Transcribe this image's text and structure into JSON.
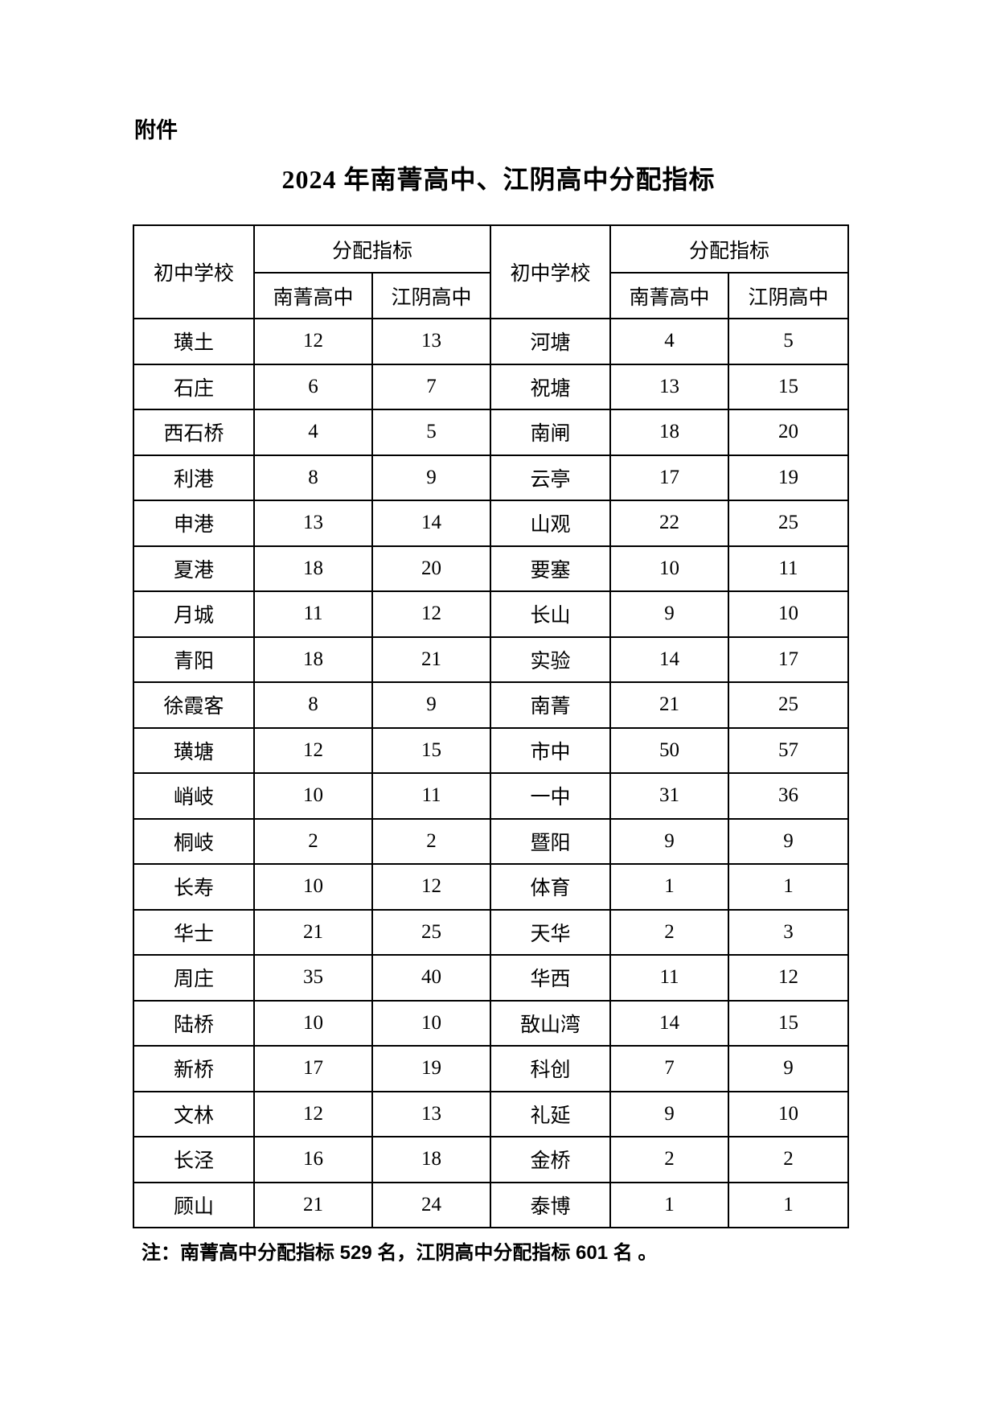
{
  "page": {
    "attachment_label": "附件",
    "title": "2024 年南菁高中、江阴高中分配指标",
    "footnote": "注：南菁高中分配指标 529 名，江阴高中分配指标 601 名 。"
  },
  "table": {
    "headers": {
      "school": "初中学校",
      "quota_group": "分配指标",
      "nanjing": "南菁高中",
      "jiangyin": "江阴高中"
    },
    "totals": {
      "nanjing_total": "529",
      "jiangyin_total": "601"
    },
    "rows": [
      {
        "left": {
          "school": "璜土",
          "nanjing": "12",
          "jiangyin": "13"
        },
        "right": {
          "school": "河塘",
          "nanjing": "4",
          "jiangyin": "5"
        }
      },
      {
        "left": {
          "school": "石庄",
          "nanjing": "6",
          "jiangyin": "7"
        },
        "right": {
          "school": "祝塘",
          "nanjing": "13",
          "jiangyin": "15"
        }
      },
      {
        "left": {
          "school": "西石桥",
          "nanjing": "4",
          "jiangyin": "5"
        },
        "right": {
          "school": "南闸",
          "nanjing": "18",
          "jiangyin": "20"
        }
      },
      {
        "left": {
          "school": "利港",
          "nanjing": "8",
          "jiangyin": "9"
        },
        "right": {
          "school": "云亭",
          "nanjing": "17",
          "jiangyin": "19"
        }
      },
      {
        "left": {
          "school": "申港",
          "nanjing": "13",
          "jiangyin": "14"
        },
        "right": {
          "school": "山观",
          "nanjing": "22",
          "jiangyin": "25"
        }
      },
      {
        "left": {
          "school": "夏港",
          "nanjing": "18",
          "jiangyin": "20"
        },
        "right": {
          "school": "要塞",
          "nanjing": "10",
          "jiangyin": "11"
        }
      },
      {
        "left": {
          "school": "月城",
          "nanjing": "11",
          "jiangyin": "12"
        },
        "right": {
          "school": "长山",
          "nanjing": "9",
          "jiangyin": "10"
        }
      },
      {
        "left": {
          "school": "青阳",
          "nanjing": "18",
          "jiangyin": "21"
        },
        "right": {
          "school": "实验",
          "nanjing": "14",
          "jiangyin": "17"
        }
      },
      {
        "left": {
          "school": "徐霞客",
          "nanjing": "8",
          "jiangyin": "9"
        },
        "right": {
          "school": "南菁",
          "nanjing": "21",
          "jiangyin": "25"
        }
      },
      {
        "left": {
          "school": "璜塘",
          "nanjing": "12",
          "jiangyin": "15"
        },
        "right": {
          "school": "市中",
          "nanjing": "50",
          "jiangyin": "57"
        }
      },
      {
        "left": {
          "school": "峭岐",
          "nanjing": "10",
          "jiangyin": "11"
        },
        "right": {
          "school": "一中",
          "nanjing": "31",
          "jiangyin": "36"
        }
      },
      {
        "left": {
          "school": "桐岐",
          "nanjing": "2",
          "jiangyin": "2"
        },
        "right": {
          "school": "暨阳",
          "nanjing": "9",
          "jiangyin": "9"
        }
      },
      {
        "left": {
          "school": "长寿",
          "nanjing": "10",
          "jiangyin": "12"
        },
        "right": {
          "school": "体育",
          "nanjing": "1",
          "jiangyin": "1"
        }
      },
      {
        "left": {
          "school": "华士",
          "nanjing": "21",
          "jiangyin": "25"
        },
        "right": {
          "school": "天华",
          "nanjing": "2",
          "jiangyin": "3"
        }
      },
      {
        "left": {
          "school": "周庄",
          "nanjing": "35",
          "jiangyin": "40"
        },
        "right": {
          "school": "华西",
          "nanjing": "11",
          "jiangyin": "12"
        }
      },
      {
        "left": {
          "school": "陆桥",
          "nanjing": "10",
          "jiangyin": "10"
        },
        "right": {
          "school": "敔山湾",
          "nanjing": "14",
          "jiangyin": "15"
        }
      },
      {
        "left": {
          "school": "新桥",
          "nanjing": "17",
          "jiangyin": "19"
        },
        "right": {
          "school": "科创",
          "nanjing": "7",
          "jiangyin": "9"
        }
      },
      {
        "left": {
          "school": "文林",
          "nanjing": "12",
          "jiangyin": "13"
        },
        "right": {
          "school": "礼延",
          "nanjing": "9",
          "jiangyin": "10"
        }
      },
      {
        "left": {
          "school": "长泾",
          "nanjing": "16",
          "jiangyin": "18"
        },
        "right": {
          "school": "金桥",
          "nanjing": "2",
          "jiangyin": "2"
        }
      },
      {
        "left": {
          "school": "顾山",
          "nanjing": "21",
          "jiangyin": "24"
        },
        "right": {
          "school": "泰博",
          "nanjing": "1",
          "jiangyin": "1"
        }
      }
    ]
  }
}
